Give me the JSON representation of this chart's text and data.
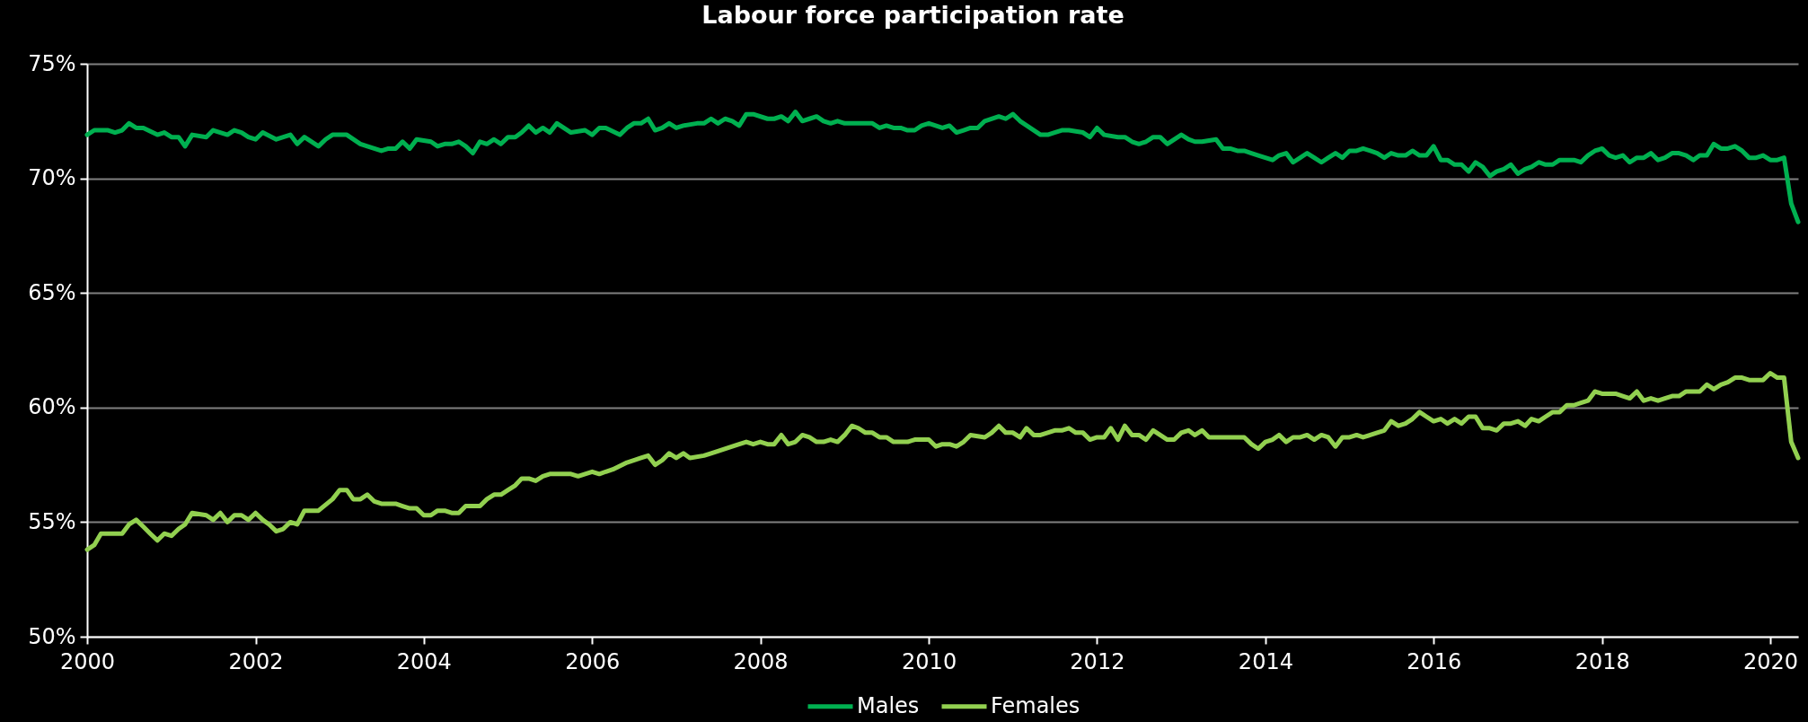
{
  "chart_data": {
    "type": "line",
    "title": "Labour force participation rate",
    "xlim": [
      "2000-01",
      "2020-05"
    ],
    "ylim": [
      50,
      75
    ],
    "xticks": [
      "2000",
      "2002",
      "2004",
      "2006",
      "2008",
      "2010",
      "2012",
      "2014",
      "2016",
      "2018",
      "2020"
    ],
    "yticks": [
      {
        "value": 50,
        "label": "50%"
      },
      {
        "value": 55,
        "label": "55%"
      },
      {
        "value": 60,
        "label": "60%"
      },
      {
        "value": 65,
        "label": "65%"
      },
      {
        "value": 70,
        "label": "70%"
      },
      {
        "value": 75,
        "label": "75%"
      }
    ],
    "grid": "y",
    "legend": "bottom",
    "series": [
      {
        "name": "Males",
        "color": "#00b050",
        "x": [
          "2000-01",
          "2000-02",
          "2000-03",
          "2000-04",
          "2000-05",
          "2000-06",
          "2000-07",
          "2000-08",
          "2000-09",
          "2000-11",
          "2000-12",
          "2001-01",
          "2001-02",
          "2001-03",
          "2001-04",
          "2001-06",
          "2001-07",
          "2001-09",
          "2001-10",
          "2001-11",
          "2001-12",
          "2002-01",
          "2002-02",
          "2002-04",
          "2002-06",
          "2002-07",
          "2002-08",
          "2002-10",
          "2002-11",
          "2002-12",
          "2003-02",
          "2003-04",
          "2003-05",
          "2003-07",
          "2003-08",
          "2003-09",
          "2003-10",
          "2003-11",
          "2003-12",
          "2004-02",
          "2004-03",
          "2004-04",
          "2004-05",
          "2004-06",
          "2004-07",
          "2004-08",
          "2004-09",
          "2004-10",
          "2004-11",
          "2004-12",
          "2005-01",
          "2005-02",
          "2005-03",
          "2005-04",
          "2005-05",
          "2005-06",
          "2005-07",
          "2005-08",
          "2005-10",
          "2005-12",
          "2006-01",
          "2006-02",
          "2006-03",
          "2006-05",
          "2006-06",
          "2006-07",
          "2006-08",
          "2006-09",
          "2006-10",
          "2006-11",
          "2006-12",
          "2007-01",
          "2007-02",
          "2007-04",
          "2007-05",
          "2007-06",
          "2007-07",
          "2007-08",
          "2007-09",
          "2007-10",
          "2007-11",
          "2007-12",
          "2008-02",
          "2008-03",
          "2008-04",
          "2008-05",
          "2008-06",
          "2008-07",
          "2008-08",
          "2008-09",
          "2008-10",
          "2008-11",
          "2008-12",
          "2009-01",
          "2009-03",
          "2009-05",
          "2009-06",
          "2009-07",
          "2009-08",
          "2009-09",
          "2009-10",
          "2009-11",
          "2009-12",
          "2010-01",
          "2010-03",
          "2010-04",
          "2010-05",
          "2010-06",
          "2010-07",
          "2010-08",
          "2010-09",
          "2010-11",
          "2010-12",
          "2011-01",
          "2011-02",
          "2011-05",
          "2011-06",
          "2011-07",
          "2011-08",
          "2011-09",
          "2011-11",
          "2011-12",
          "2012-01",
          "2012-02",
          "2012-04",
          "2012-05",
          "2012-06",
          "2012-07",
          "2012-08",
          "2012-09",
          "2012-10",
          "2012-11",
          "2013-01",
          "2013-02",
          "2013-03",
          "2013-04",
          "2013-06",
          "2013-07",
          "2013-08",
          "2013-09",
          "2013-10",
          "2013-11",
          "2013-12",
          "2014-01",
          "2014-02",
          "2014-03",
          "2014-04",
          "2014-05",
          "2014-06",
          "2014-07",
          "2014-08",
          "2014-09",
          "2014-10",
          "2014-11",
          "2014-12",
          "2015-01",
          "2015-02",
          "2015-03",
          "2015-04",
          "2015-05",
          "2015-06",
          "2015-07",
          "2015-08",
          "2015-09",
          "2015-10",
          "2015-11",
          "2015-12",
          "2016-01",
          "2016-02",
          "2016-03",
          "2016-04",
          "2016-05",
          "2016-06",
          "2016-07",
          "2016-08",
          "2016-09",
          "2016-10",
          "2016-11",
          "2016-12",
          "2017-01",
          "2017-02",
          "2017-03",
          "2017-04",
          "2017-05",
          "2017-06",
          "2017-07",
          "2017-08",
          "2017-09",
          "2017-10",
          "2017-11",
          "2017-12",
          "2018-01",
          "2018-02",
          "2018-03",
          "2018-04",
          "2018-05",
          "2018-06",
          "2018-07",
          "2018-08",
          "2018-09",
          "2018-10",
          "2018-11",
          "2018-12",
          "2019-01",
          "2019-02",
          "2019-03",
          "2019-04",
          "2019-05",
          "2019-06",
          "2019-07",
          "2019-08",
          "2019-09",
          "2019-10",
          "2019-11",
          "2019-12",
          "2020-01",
          "2020-02",
          "2020-03",
          "2020-04",
          "2020-05"
        ],
        "values": [
          71.9,
          72.1,
          72.1,
          72.1,
          72.0,
          72.1,
          72.4,
          72.2,
          72.2,
          71.9,
          72.0,
          71.8,
          71.8,
          71.4,
          71.9,
          71.8,
          72.1,
          71.9,
          72.1,
          72.0,
          71.8,
          71.7,
          72.0,
          71.7,
          71.9,
          71.5,
          71.8,
          71.4,
          71.7,
          71.9,
          71.9,
          71.5,
          71.4,
          71.2,
          71.3,
          71.3,
          71.6,
          71.3,
          71.7,
          71.6,
          71.4,
          71.5,
          71.5,
          71.6,
          71.4,
          71.1,
          71.6,
          71.5,
          71.7,
          71.5,
          71.8,
          71.8,
          72.0,
          72.3,
          72.0,
          72.2,
          72.0,
          72.4,
          72.0,
          72.1,
          71.9,
          72.2,
          72.2,
          71.9,
          72.2,
          72.4,
          72.4,
          72.6,
          72.1,
          72.2,
          72.4,
          72.2,
          72.3,
          72.4,
          72.4,
          72.6,
          72.4,
          72.6,
          72.5,
          72.3,
          72.8,
          72.8,
          72.6,
          72.6,
          72.7,
          72.5,
          72.9,
          72.5,
          72.6,
          72.7,
          72.5,
          72.4,
          72.5,
          72.4,
          72.4,
          72.4,
          72.2,
          72.3,
          72.2,
          72.2,
          72.1,
          72.1,
          72.3,
          72.4,
          72.2,
          72.3,
          72.0,
          72.1,
          72.2,
          72.2,
          72.5,
          72.7,
          72.6,
          72.8,
          72.5,
          71.9,
          71.9,
          72.0,
          72.1,
          72.1,
          72.0,
          71.8,
          72.2,
          71.9,
          71.8,
          71.8,
          71.6,
          71.5,
          71.6,
          71.8,
          71.8,
          71.5,
          71.9,
          71.7,
          71.6,
          71.6,
          71.7,
          71.3,
          71.3,
          71.2,
          71.2,
          71.1,
          71.0,
          70.9,
          70.8,
          71.0,
          71.1,
          70.7,
          70.9,
          71.1,
          70.9,
          70.7,
          70.9,
          71.1,
          70.9,
          71.2,
          71.2,
          71.3,
          71.2,
          71.1,
          70.9,
          71.1,
          71.0,
          71.0,
          71.2,
          71.0,
          71.0,
          71.4,
          70.8,
          70.8,
          70.6,
          70.6,
          70.3,
          70.7,
          70.5,
          70.1,
          70.3,
          70.4,
          70.6,
          70.2,
          70.4,
          70.5,
          70.7,
          70.6,
          70.6,
          70.8,
          70.8,
          70.8,
          70.7,
          71.0,
          71.2,
          71.3,
          71.0,
          70.9,
          71.0,
          70.7,
          70.9,
          70.9,
          71.1,
          70.8,
          70.9,
          71.1,
          71.1,
          71.0,
          70.8,
          71.0,
          71.0,
          71.5,
          71.3,
          71.3,
          71.4,
          71.2,
          70.9,
          70.9,
          71.0,
          70.8,
          70.8,
          70.9,
          68.9,
          68.1
        ]
      },
      {
        "name": "Females",
        "color": "#92d050",
        "x": [
          "2000-01",
          "2000-02",
          "2000-03",
          "2000-04",
          "2000-05",
          "2000-06",
          "2000-07",
          "2000-08",
          "2000-09",
          "2000-10",
          "2000-11",
          "2000-12",
          "2001-01",
          "2001-02",
          "2001-03",
          "2001-04",
          "2001-06",
          "2001-07",
          "2001-08",
          "2001-09",
          "2001-10",
          "2001-11",
          "2001-12",
          "2002-01",
          "2002-02",
          "2002-03",
          "2002-04",
          "2002-05",
          "2002-06",
          "2002-07",
          "2002-08",
          "2002-09",
          "2002-10",
          "2002-12",
          "2003-01",
          "2003-02",
          "2003-03",
          "2003-04",
          "2003-05",
          "2003-06",
          "2003-07",
          "2003-08",
          "2003-09",
          "2003-10",
          "2003-11",
          "2003-12",
          "2004-01",
          "2004-02",
          "2004-03",
          "2004-04",
          "2004-05",
          "2004-06",
          "2004-07",
          "2004-08",
          "2004-09",
          "2004-10",
          "2004-11",
          "2004-12",
          "2005-01",
          "2005-02",
          "2005-03",
          "2005-04",
          "2005-05",
          "2005-06",
          "2005-07",
          "2005-08",
          "2005-09",
          "2005-10",
          "2005-11",
          "2005-12",
          "2006-01",
          "2006-02",
          "2006-03",
          "2006-04",
          "2006-06",
          "2006-08",
          "2006-09",
          "2006-10",
          "2006-11",
          "2006-12",
          "2007-01",
          "2007-02",
          "2007-03",
          "2007-05",
          "2007-06",
          "2007-07",
          "2007-09",
          "2007-10",
          "2007-11",
          "2007-12",
          "2008-01",
          "2008-02",
          "2008-03",
          "2008-04",
          "2008-05",
          "2008-06",
          "2008-07",
          "2008-08",
          "2008-09",
          "2008-10",
          "2008-11",
          "2008-12",
          "2009-01",
          "2009-02",
          "2009-03",
          "2009-04",
          "2009-05",
          "2009-06",
          "2009-07",
          "2009-08",
          "2009-09",
          "2009-10",
          "2009-11",
          "2009-12",
          "2010-01",
          "2010-02",
          "2010-03",
          "2010-04",
          "2010-05",
          "2010-06",
          "2010-07",
          "2010-09",
          "2010-10",
          "2010-11",
          "2010-12",
          "2011-01",
          "2011-02",
          "2011-03",
          "2011-04",
          "2011-05",
          "2011-06",
          "2011-07",
          "2011-08",
          "2011-09",
          "2011-10",
          "2011-11",
          "2011-12",
          "2012-01",
          "2012-02",
          "2012-03",
          "2012-04",
          "2012-05",
          "2012-06",
          "2012-07",
          "2012-08",
          "2012-09",
          "2012-10",
          "2012-11",
          "2012-12",
          "2013-01",
          "2013-02",
          "2013-03",
          "2013-04",
          "2013-05",
          "2013-06",
          "2013-07",
          "2013-09",
          "2013-10",
          "2013-11",
          "2013-12",
          "2014-01",
          "2014-02",
          "2014-03",
          "2014-04",
          "2014-05",
          "2014-06",
          "2014-07",
          "2014-08",
          "2014-09",
          "2014-10",
          "2014-11",
          "2014-12",
          "2015-01",
          "2015-02",
          "2015-03",
          "2015-04",
          "2015-05",
          "2015-06",
          "2015-07",
          "2015-08",
          "2015-09",
          "2015-10",
          "2015-11",
          "2015-12",
          "2016-01",
          "2016-02",
          "2016-03",
          "2016-04",
          "2016-05",
          "2016-06",
          "2016-07",
          "2016-08",
          "2016-09",
          "2016-10",
          "2016-11",
          "2016-12",
          "2017-01",
          "2017-02",
          "2017-03",
          "2017-04",
          "2017-05",
          "2017-06",
          "2017-07",
          "2017-08",
          "2017-09",
          "2017-10",
          "2017-11",
          "2017-12",
          "2018-01",
          "2018-02",
          "2018-03",
          "2018-04",
          "2018-05",
          "2018-06",
          "2018-07",
          "2018-08",
          "2018-09",
          "2018-10",
          "2018-11",
          "2018-12",
          "2019-01",
          "2019-02",
          "2019-03",
          "2019-04",
          "2019-05",
          "2019-06",
          "2019-07",
          "2019-08",
          "2019-09",
          "2019-10",
          "2019-11",
          "2019-12",
          "2020-01",
          "2020-02",
          "2020-03",
          "2020-04",
          "2020-05"
        ],
        "values": [
          53.8,
          54.0,
          54.5,
          54.5,
          54.5,
          54.5,
          54.9,
          55.1,
          54.8,
          54.5,
          54.2,
          54.5,
          54.4,
          54.7,
          54.9,
          55.4,
          55.3,
          55.1,
          55.4,
          55.0,
          55.3,
          55.3,
          55.1,
          55.4,
          55.1,
          54.9,
          54.6,
          54.7,
          55.0,
          54.9,
          55.5,
          55.5,
          55.5,
          56.0,
          56.4,
          56.4,
          56.0,
          56.0,
          56.2,
          55.9,
          55.8,
          55.8,
          55.8,
          55.7,
          55.6,
          55.6,
          55.3,
          55.3,
          55.5,
          55.5,
          55.4,
          55.4,
          55.7,
          55.7,
          55.7,
          56.0,
          56.2,
          56.2,
          56.4,
          56.6,
          56.9,
          56.9,
          56.8,
          57.0,
          57.1,
          57.1,
          57.1,
          57.1,
          57.0,
          57.1,
          57.2,
          57.1,
          57.2,
          57.3,
          57.6,
          57.8,
          57.9,
          57.5,
          57.7,
          58.0,
          57.8,
          58.0,
          57.8,
          57.9,
          58.0,
          58.1,
          58.3,
          58.4,
          58.5,
          58.4,
          58.5,
          58.4,
          58.4,
          58.8,
          58.4,
          58.5,
          58.8,
          58.7,
          58.5,
          58.5,
          58.6,
          58.5,
          58.8,
          59.2,
          59.1,
          58.9,
          58.9,
          58.7,
          58.7,
          58.5,
          58.5,
          58.5,
          58.6,
          58.6,
          58.6,
          58.3,
          58.4,
          58.4,
          58.3,
          58.5,
          58.8,
          58.7,
          58.9,
          59.2,
          58.9,
          58.9,
          58.7,
          59.1,
          58.8,
          58.8,
          58.9,
          59.0,
          59.0,
          59.1,
          58.9,
          58.9,
          58.6,
          58.7,
          58.7,
          59.1,
          58.6,
          59.2,
          58.8,
          58.8,
          58.6,
          59.0,
          58.8,
          58.6,
          58.6,
          58.9,
          59.0,
          58.8,
          59.0,
          58.7,
          58.7,
          58.7,
          58.7,
          58.7,
          58.4,
          58.2,
          58.5,
          58.6,
          58.8,
          58.5,
          58.7,
          58.7,
          58.8,
          58.6,
          58.8,
          58.7,
          58.3,
          58.7,
          58.7,
          58.8,
          58.7,
          58.8,
          58.9,
          59.0,
          59.4,
          59.2,
          59.3,
          59.5,
          59.8,
          59.6,
          59.4,
          59.5,
          59.3,
          59.5,
          59.3,
          59.6,
          59.6,
          59.1,
          59.1,
          59.0,
          59.3,
          59.3,
          59.4,
          59.2,
          59.5,
          59.4,
          59.6,
          59.8,
          59.8,
          60.1,
          60.1,
          60.2,
          60.3,
          60.7,
          60.6,
          60.6,
          60.6,
          60.5,
          60.4,
          60.7,
          60.3,
          60.4,
          60.3,
          60.4,
          60.5,
          60.5,
          60.7,
          60.7,
          60.7,
          61.0,
          60.8,
          61.0,
          61.1,
          61.3,
          61.3,
          61.2,
          61.2,
          61.2,
          61.5,
          61.3,
          61.3,
          58.5,
          57.8
        ]
      }
    ]
  }
}
